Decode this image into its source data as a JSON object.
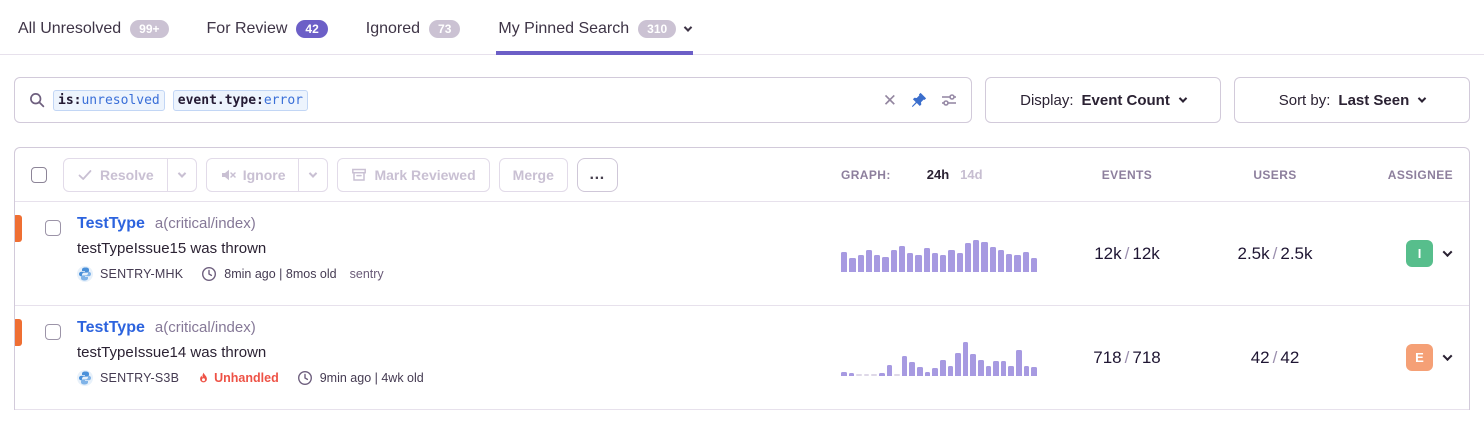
{
  "colors": {
    "accent": "#6C5FC7",
    "link": "#2c63de",
    "level": "#ef6f33",
    "bar": "#a79ae1",
    "unhandled": "#ee5246",
    "pin": "#3b6ecc"
  },
  "tabs": {
    "all_unresolved": {
      "label": "All Unresolved",
      "badge": "99+"
    },
    "for_review": {
      "label": "For Review",
      "badge": "42"
    },
    "ignored": {
      "label": "Ignored",
      "badge": "73"
    },
    "pinned": {
      "label": "My Pinned Search",
      "badge": "310"
    }
  },
  "search": {
    "tokens": [
      {
        "key": "is:",
        "value": "unresolved"
      },
      {
        "key": "event.type:",
        "value": "error"
      }
    ],
    "clear_glyph": "✕"
  },
  "display_dropdown": {
    "label": "Display:",
    "value": "Event Count"
  },
  "sort_dropdown": {
    "label": "Sort by:",
    "value": "Last Seen"
  },
  "toolbar": {
    "resolve": "Resolve",
    "ignore": "Ignore",
    "mark_reviewed": "Mark Reviewed",
    "merge": "Merge",
    "more": "…"
  },
  "table": {
    "graph_label": "GRAPH:",
    "range_24h": "24h",
    "range_14d": "14d",
    "events_header": "EVENTS",
    "users_header": "USERS",
    "assignee_header": "ASSIGNEE",
    "value_separator": "/"
  },
  "rows": [
    {
      "title": "TestType",
      "annotation": "a(critical/index)",
      "message": "testTypeIssue15 was thrown",
      "short_id": "SENTRY-MHK",
      "timing": "8min ago | 8mos old",
      "tag": "sentry",
      "events_current": "12k",
      "events_total": "12k",
      "users_current": "2.5k",
      "users_total": "2.5k",
      "assignee": {
        "initial": "I",
        "color": "#57be8c"
      },
      "graph": [
        55,
        40,
        47,
        60,
        47,
        43,
        62,
        72,
        52,
        48,
        66,
        52,
        47,
        62,
        52,
        80,
        88,
        84,
        70,
        62,
        50,
        46,
        56,
        40
      ]
    },
    {
      "title": "TestType",
      "annotation": "a(critical/index)",
      "message": "testTypeIssue14 was thrown",
      "short_id": "SENTRY-S3B",
      "unhandled_label": "Unhandled",
      "timing": "9min ago | 4wk old",
      "events_current": "718",
      "events_total": "718",
      "users_current": "42",
      "users_total": "42",
      "assignee": {
        "initial": "E",
        "color": "#f5a076"
      },
      "graph": [
        12,
        5,
        0,
        0,
        0,
        6,
        30,
        0,
        55,
        38,
        25,
        12,
        22,
        45,
        28,
        65,
        95,
        62,
        45,
        28,
        42,
        42,
        28,
        72,
        28,
        24
      ]
    }
  ]
}
